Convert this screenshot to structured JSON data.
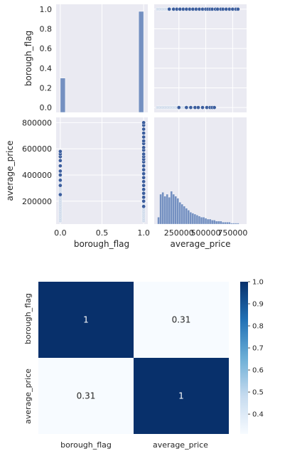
{
  "chart_data": [
    {
      "type": "scatter",
      "kind": "pairplot",
      "variables": [
        "borough_flag",
        "average_price"
      ],
      "diagonal": "histogram",
      "background": "#EAEAF2",
      "grid": true,
      "colors": {
        "bar": "#4C72B0",
        "point_dark": "#3C5E9E",
        "point_light": "#C9D6E8"
      },
      "axis_labels": {
        "x": [
          "borough_flag",
          "average_price"
        ],
        "y": [
          "borough_flag",
          "average_price"
        ]
      },
      "ticks": {
        "borough_flag_x": [
          "0.0",
          "0.5",
          "1.0"
        ],
        "borough_flag_y": [
          "0.0",
          "0.2",
          "0.4",
          "0.6",
          "0.8",
          "1.0"
        ],
        "average_price_x": [
          "250000",
          "500000",
          "750000"
        ],
        "average_price_y": [
          "200000",
          "400000",
          "600000",
          "800000"
        ]
      },
      "xlim_borough_flag": [
        -0.05,
        1.05
      ],
      "ylim_borough_flag": [
        -0.05,
        1.05
      ],
      "xlim_average_price": [
        20000,
        880000
      ],
      "ylim_average_price": [
        25000,
        840000
      ],
      "hist_borough_flag": {
        "bins": [
          0.0,
          1.0
        ],
        "relative_heights": [
          0.34,
          1.0
        ]
      },
      "hist_average_price": {
        "bin_start": 50000,
        "bin_width": 20000,
        "relative_counts": [
          0.07,
          0.3,
          0.32,
          0.28,
          0.3,
          0.27,
          0.33,
          0.3,
          0.28,
          0.26,
          0.22,
          0.2,
          0.18,
          0.16,
          0.14,
          0.12,
          0.11,
          0.1,
          0.09,
          0.08,
          0.07,
          0.07,
          0.06,
          0.05,
          0.05,
          0.04,
          0.04,
          0.03,
          0.03,
          0.03,
          0.02,
          0.02,
          0.02,
          0.02,
          0.01,
          0.01,
          0.01,
          0.01
        ]
      },
      "scatter_borough_0": {
        "x": 0,
        "dark": [
          250000,
          320000,
          360000,
          400000,
          430000,
          470000,
          510000,
          540000,
          560000,
          580000
        ],
        "light_range": [
          50000,
          420000
        ]
      },
      "scatter_borough_1": {
        "x": 1,
        "dark": [
          160000,
          200000,
          230000,
          260000,
          290000,
          320000,
          350000,
          380000,
          410000,
          440000,
          470000,
          500000,
          520000,
          540000,
          560000,
          590000,
          610000,
          640000,
          660000,
          690000,
          720000,
          750000,
          780000,
          800000
        ],
        "light_range": [
          50000,
          300000
        ]
      }
    },
    {
      "type": "heatmap",
      "labels": [
        "borough_flag",
        "average_price"
      ],
      "values": [
        [
          1,
          0.31
        ],
        [
          0.31,
          1
        ]
      ],
      "annotations": [
        [
          "1",
          "0.31"
        ],
        [
          "0.31",
          "1"
        ]
      ],
      "colormap": "Blues",
      "colorbar": {
        "min": 0.31,
        "max": 1.0,
        "ticks": [
          "0.4",
          "0.5",
          "0.6",
          "0.7",
          "0.8",
          "0.9",
          "1.0"
        ]
      }
    }
  ]
}
